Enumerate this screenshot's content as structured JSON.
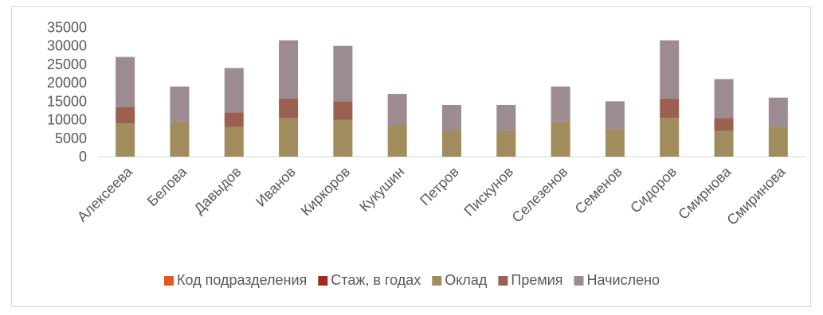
{
  "chart_data": {
    "type": "bar",
    "stacked": true,
    "categories": [
      "Алексеева",
      "Белова",
      "Давыдов",
      "Иванов",
      "Киркоров",
      "Кукушин",
      "Петров",
      "Пискунов",
      "Селезенов",
      "Семенов",
      "Сидоров",
      "Смирнова",
      "Смиринова"
    ],
    "series": [
      {
        "name": "Код подразделения",
        "color": "#e3571c",
        "values": [
          3,
          3,
          2,
          1,
          2,
          3,
          1,
          1,
          2,
          1,
          2,
          3,
          1
        ]
      },
      {
        "name": "Стаж, в годах",
        "color": "#a52a1e",
        "values": [
          5,
          3,
          8,
          10,
          6,
          4,
          2,
          3,
          5,
          2,
          9,
          4,
          3
        ]
      },
      {
        "name": "Оклад",
        "color": "#a08c5d",
        "values": [
          9000,
          9500,
          8000,
          10500,
          10000,
          8500,
          7000,
          7000,
          9500,
          7500,
          10500,
          7000,
          8000
        ]
      },
      {
        "name": "Премия",
        "color": "#9b6050",
        "values": [
          4500,
          0,
          4000,
          5250,
          5000,
          0,
          0,
          0,
          0,
          0,
          5250,
          3500,
          0
        ]
      },
      {
        "name": "Начислено",
        "color": "#9c8b91",
        "values": [
          13500,
          9500,
          12000,
          15750,
          15000,
          8500,
          7000,
          7000,
          9500,
          7500,
          15750,
          10500,
          8000
        ]
      }
    ],
    "yticks": [
      "35000",
      "30000",
      "25000",
      "20000",
      "15000",
      "10000",
      "5000",
      "0"
    ],
    "ylim": [
      0,
      35000
    ],
    "title": "",
    "xlabel": "",
    "ylabel": "",
    "grid": false,
    "legend_position": "bottom"
  }
}
